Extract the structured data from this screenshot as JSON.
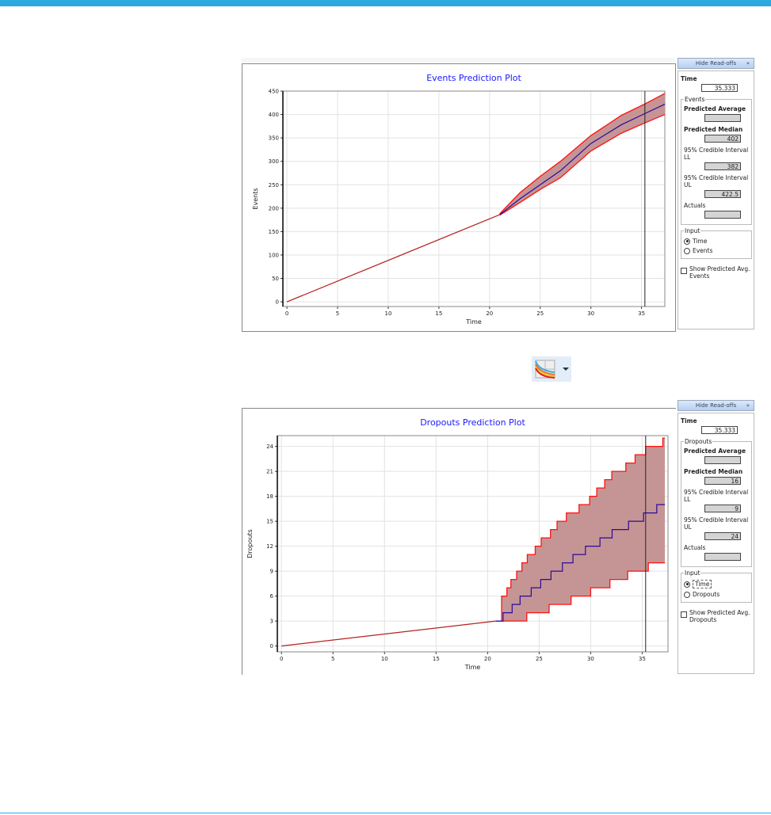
{
  "colors": {
    "accent": "#2aa8e0",
    "band_fill": "#c59595",
    "band_edge": "#ff1010",
    "median": "#2a0a9c",
    "history": "#b52020",
    "title": "#1a1aff"
  },
  "toolbar": {
    "icon": "chart-type-icon",
    "dropdown_icon": "chevron-down-icon"
  },
  "panels": [
    {
      "hide_label": "Hide Read-offs",
      "hide_arrow": "»",
      "time_label": "Time",
      "time_value": "35.333",
      "group": "Events",
      "fields": [
        {
          "label": "Predicted Average",
          "value": "",
          "bold": true
        },
        {
          "label": "Predicted Median",
          "value": "402",
          "bold": true
        },
        {
          "label": "95% Credible Interval LL",
          "value": "382",
          "bold": false
        },
        {
          "label": "95% Credible Interval UL",
          "value": "422.5",
          "bold": false
        },
        {
          "label": "Actuals",
          "value": "",
          "bold": false
        }
      ],
      "input_label": "Input",
      "radios": [
        {
          "label": "Time",
          "checked": true
        },
        {
          "label": "Events",
          "checked": false
        }
      ],
      "checkbox": "Show Predicted Avg. Events"
    },
    {
      "hide_label": "Hide Read-offs",
      "hide_arrow": "»",
      "time_label": "Time",
      "time_value": "35.333",
      "group": "Dropouts",
      "fields": [
        {
          "label": "Predicted Average",
          "value": "",
          "bold": true
        },
        {
          "label": "Predicted Median",
          "value": "16",
          "bold": true
        },
        {
          "label": "95% Credible Interval LL",
          "value": "9",
          "bold": false
        },
        {
          "label": "95% Credible Interval UL",
          "value": "24",
          "bold": false
        },
        {
          "label": "Actuals",
          "value": "",
          "bold": false
        }
      ],
      "input_label": "Input",
      "radios": [
        {
          "label": "Time",
          "checked": true,
          "focused": true
        },
        {
          "label": "Dropouts",
          "checked": false
        }
      ],
      "checkbox": "Show Predicted Avg. Dropouts"
    }
  ],
  "chart_data": [
    {
      "type": "area",
      "title": "Events Prediction Plot",
      "xlabel": "Time",
      "ylabel": "Events",
      "xlim": [
        -0.4,
        37.3
      ],
      "ylim": [
        -10,
        450
      ],
      "xticks": [
        0,
        5,
        10,
        15,
        20,
        25,
        30,
        35
      ],
      "yticks": [
        0,
        50,
        100,
        150,
        200,
        250,
        300,
        350,
        400,
        450
      ],
      "grid": true,
      "cursor_time": 35.333,
      "history": {
        "x": [
          0,
          21
        ],
        "y": [
          0,
          186
        ]
      },
      "median": {
        "x": [
          21,
          23,
          25,
          27,
          30,
          33,
          35.333,
          37.3
        ],
        "y": [
          186,
          220,
          250,
          280,
          338,
          378,
          402,
          422
        ]
      },
      "upper": {
        "x": [
          21,
          23,
          25,
          27,
          30,
          33,
          35.333,
          37.3
        ],
        "y": [
          188,
          233,
          268,
          300,
          355,
          398,
          422.5,
          445
        ]
      },
      "lower": {
        "x": [
          21,
          23,
          25,
          27,
          30,
          33,
          35.333,
          37.3
        ],
        "y": [
          185,
          212,
          240,
          265,
          322,
          360,
          382,
          400
        ]
      }
    },
    {
      "type": "area",
      "title": "Dropouts Prediction Plot",
      "xlabel": "Time",
      "ylabel": "Dropouts",
      "step": true,
      "xlim": [
        -0.4,
        37.5
      ],
      "ylim": [
        -0.7,
        25.3
      ],
      "xticks": [
        0,
        5,
        10,
        15,
        20,
        25,
        30,
        35
      ],
      "yticks": [
        0,
        3,
        6,
        9,
        12,
        15,
        18,
        21,
        24
      ],
      "grid": true,
      "cursor_time": 35.333,
      "history": {
        "x": [
          0,
          20.8
        ],
        "y": [
          0,
          3
        ]
      },
      "upper": {
        "x": [
          20.8,
          21.36,
          21.87,
          22.26,
          22.82,
          23.33,
          23.85,
          24.62,
          25.2,
          26.1,
          26.74,
          27.64,
          28.87,
          29.9,
          30.59,
          31.36,
          32.05,
          33.41,
          34.31,
          35.33,
          37.0
        ],
        "y": [
          3,
          6,
          7,
          8,
          9,
          10,
          11,
          12,
          13,
          14,
          15,
          16,
          17,
          18,
          19,
          20,
          21,
          22,
          23,
          24,
          25
        ],
        "end": 37.2
      },
      "median": {
        "x": [
          20.8,
          21.5,
          22.38,
          23.15,
          24.23,
          25.15,
          26.15,
          27.26,
          28.28,
          29.49,
          30.9,
          32.08,
          33.67,
          35.13,
          36.41
        ],
        "y": [
          3,
          4,
          5,
          6,
          7,
          8,
          9,
          10,
          11,
          12,
          13,
          14,
          15,
          16,
          17
        ],
        "end": 37.2
      },
      "lower": {
        "x": [
          20.8,
          23.8,
          25.97,
          28.1,
          30.0,
          31.87,
          33.59,
          35.59
        ],
        "y": [
          3,
          4,
          5,
          6,
          7,
          8,
          9,
          10
        ],
        "end": 37.2
      }
    }
  ]
}
